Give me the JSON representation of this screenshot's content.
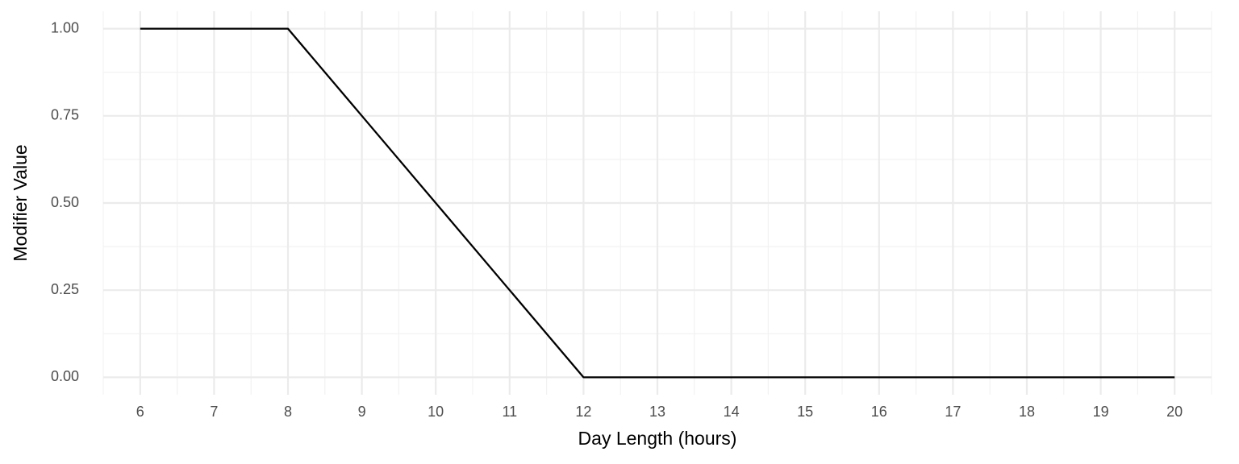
{
  "chart_data": {
    "type": "line",
    "x": [
      6,
      7,
      8,
      9,
      10,
      11,
      12,
      13,
      14,
      15,
      16,
      17,
      18,
      19,
      20
    ],
    "series": [
      {
        "color": "#000000",
        "values": [
          1,
          1,
          1,
          0.75,
          0.5,
          0.25,
          0,
          0,
          0,
          0,
          0,
          0,
          0,
          0,
          0
        ]
      }
    ],
    "x_label": "Day Length (hours)",
    "y_label": "Modifier Value",
    "xlim": [
      5.5,
      20.5
    ],
    "ylim": [
      -0.05,
      1.05
    ],
    "xticks": [
      6,
      7,
      8,
      9,
      10,
      11,
      12,
      13,
      14,
      15,
      16,
      17,
      18,
      19,
      20
    ],
    "yticks": [
      {
        "value": 0,
        "label": "0.00"
      },
      {
        "value": 0.25,
        "label": "0.25"
      },
      {
        "value": 0.5,
        "label": "0.50"
      },
      {
        "value": 0.75,
        "label": "0.75"
      },
      {
        "value": 1,
        "label": "1.00"
      }
    ],
    "grid": true,
    "minor_grid": true
  }
}
